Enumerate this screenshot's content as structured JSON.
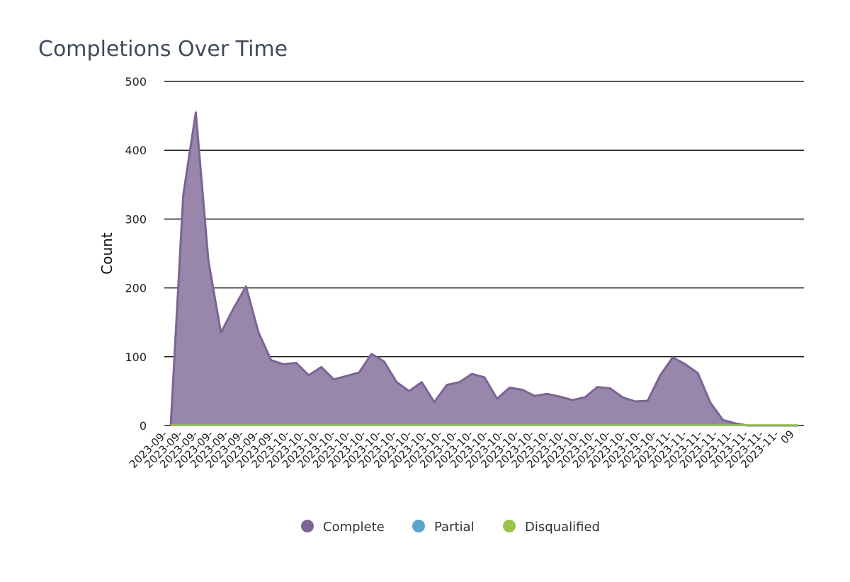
{
  "chart_data": {
    "type": "area",
    "title": "Completions Over Time",
    "xlabel": "",
    "ylabel": "Count",
    "ylim": [
      0,
      500
    ],
    "yticks": [
      0,
      100,
      200,
      300,
      400,
      500
    ],
    "grid": true,
    "legend_position": "bottom",
    "x_tick_labels": [
      "2023-09-",
      "2023-09-",
      "2023-09-",
      "2023-09-",
      "2023-09-",
      "2023-09-",
      "2023-09-",
      "2023-09-",
      "2023-10-",
      "2023-10-",
      "2023-10-",
      "2023-10-",
      "2023-10-",
      "2023-10-",
      "2023-10-",
      "2023-10-",
      "2023-10-",
      "2023-10-",
      "2023-10-",
      "2023-10-",
      "2023-10-",
      "2023-10-",
      "2023-10-",
      "2023-10-",
      "2023-10-",
      "2023-10-",
      "2023-10-",
      "2023-10-",
      "2023-10-",
      "2023-10-",
      "2023-10-",
      "2023-10-",
      "2023-10-",
      "2023-11-",
      "2023-11-",
      "2023-11-",
      "2023-11-",
      "2023-11-",
      "2023-11-",
      "2023-11-",
      "2023-11-",
      "09"
    ],
    "series": [
      {
        "name": "Complete",
        "color": "#7b6496",
        "values": [
          0,
          335,
          455,
          240,
          135,
          170,
          202,
          135,
          95,
          89,
          91,
          73,
          85,
          67,
          72,
          77,
          104,
          93,
          63,
          50,
          63,
          34,
          59,
          63,
          75,
          70,
          39,
          55,
          52,
          43,
          46,
          42,
          37,
          41,
          56,
          54,
          41,
          35,
          36,
          73,
          99,
          89,
          76,
          33,
          8,
          3,
          0,
          0,
          0,
          0,
          0
        ]
      },
      {
        "name": "Partial",
        "color": "#5aa5c8",
        "values": [
          0,
          0,
          0,
          0,
          0,
          0,
          0,
          0,
          0,
          0,
          0,
          0,
          0,
          0,
          0,
          0,
          0,
          0,
          0,
          0,
          0,
          0,
          0,
          0,
          0,
          0,
          0,
          0,
          0,
          0,
          0,
          0,
          0,
          0,
          0,
          0,
          0,
          0,
          0,
          0,
          0,
          0,
          0,
          0,
          0,
          0,
          0,
          0,
          0,
          0,
          0
        ]
      },
      {
        "name": "Disqualified",
        "color": "#9bc34a",
        "values": [
          0,
          0,
          0,
          0,
          0,
          0,
          0,
          0,
          0,
          0,
          0,
          0,
          0,
          0,
          0,
          0,
          0,
          0,
          0,
          0,
          0,
          0,
          0,
          0,
          0,
          0,
          0,
          0,
          0,
          0,
          0,
          0,
          0,
          0,
          0,
          0,
          0,
          0,
          0,
          0,
          0,
          0,
          0,
          0,
          0,
          0,
          0,
          0,
          0,
          0,
          0
        ]
      }
    ]
  },
  "colors": {
    "complete_fill": "#9886ab",
    "complete_stroke": "#7b6496",
    "partial": "#5aa5c8",
    "disqualified": "#9bc34a",
    "grid": "#222222",
    "title": "#3f4b5c"
  }
}
